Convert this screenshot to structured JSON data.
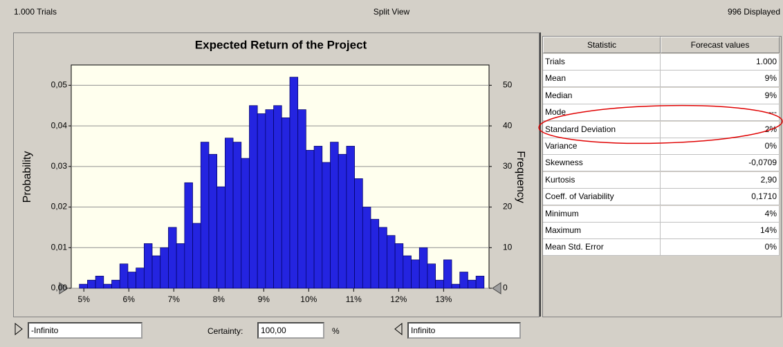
{
  "header": {
    "left": "1.000 Trials",
    "center": "Split View",
    "right": "996 Displayed"
  },
  "chart_data": {
    "type": "histogram",
    "title": "Expected Return of the Project",
    "ylabel": "Probability",
    "y2label": "Frequency",
    "bins": [
      4.9,
      5.08,
      5.26,
      5.44,
      5.62,
      5.8,
      5.98,
      6.16,
      6.34,
      6.52,
      6.7,
      6.88,
      7.06,
      7.24,
      7.42,
      7.6,
      7.78,
      7.96,
      8.14,
      8.32,
      8.5,
      8.68,
      8.86,
      9.04,
      9.22,
      9.4,
      9.58,
      9.76,
      9.94,
      10.12,
      10.3,
      10.48,
      10.66,
      10.84,
      11.02,
      11.2,
      11.38,
      11.56,
      11.74,
      11.92,
      12.1,
      12.28,
      12.46,
      12.64,
      12.82,
      13.0,
      13.18,
      13.36,
      13.54,
      13.72,
      13.9
    ],
    "series": [
      {
        "color": "#2424e0",
        "axis": "y2",
        "values": [
          1,
          2,
          3,
          1,
          2,
          6,
          4,
          5,
          11,
          8,
          10,
          15,
          11,
          26,
          16,
          36,
          33,
          25,
          37,
          36,
          32,
          45,
          43,
          44,
          45,
          42,
          52,
          44,
          34,
          35,
          31,
          36,
          33,
          35,
          27,
          20,
          17,
          15,
          13,
          11,
          8,
          7,
          10,
          6,
          2,
          7,
          1,
          4,
          2,
          3
        ]
      }
    ],
    "xlim": [
      4.72,
      14.01
    ],
    "xticks": [
      {
        "value": 5,
        "label": "5%"
      },
      {
        "value": 6,
        "label": "6%"
      },
      {
        "value": 7,
        "label": "7%"
      },
      {
        "value": 8,
        "label": "8%"
      },
      {
        "value": 9,
        "label": "9%"
      },
      {
        "value": 10,
        "label": "10%"
      },
      {
        "value": 11,
        "label": "11%"
      },
      {
        "value": 12,
        "label": "12%"
      },
      {
        "value": 13,
        "label": "13%"
      }
    ],
    "ylim": [
      0,
      0.055
    ],
    "yticks": [
      {
        "value": 0,
        "label": "0,00"
      },
      {
        "value": 0.01,
        "label": "0,01"
      },
      {
        "value": 0.02,
        "label": "0,02"
      },
      {
        "value": 0.03,
        "label": "0,03"
      },
      {
        "value": 0.04,
        "label": "0,04"
      },
      {
        "value": 0.05,
        "label": "0,05"
      }
    ],
    "y2lim": [
      0,
      55
    ],
    "y2ticks": [
      0,
      10,
      20,
      30,
      40,
      50
    ],
    "grid": true
  },
  "table": {
    "columns": [
      "Statistic",
      "Forecast values"
    ],
    "rows": [
      [
        "Trials",
        "1.000"
      ],
      [
        "Mean",
        "9%"
      ],
      [
        "Median",
        "9%"
      ],
      [
        "Mode",
        "---"
      ],
      [
        "Standard Deviation",
        "2%"
      ],
      [
        "Variance",
        "0%"
      ],
      [
        "Skewness",
        "-0,0709"
      ],
      [
        "Kurtosis",
        "2,90"
      ],
      [
        "Coeff. of Variability",
        "0,1710"
      ],
      [
        "Minimum",
        "4%"
      ],
      [
        "Maximum",
        "14%"
      ],
      [
        "Mean Std. Error",
        "0%"
      ]
    ]
  },
  "footer": {
    "lower": "-Infinito",
    "certainty_label": "Certainty:",
    "certainty": "100,00",
    "unit": "%",
    "upper": "Infinito"
  }
}
